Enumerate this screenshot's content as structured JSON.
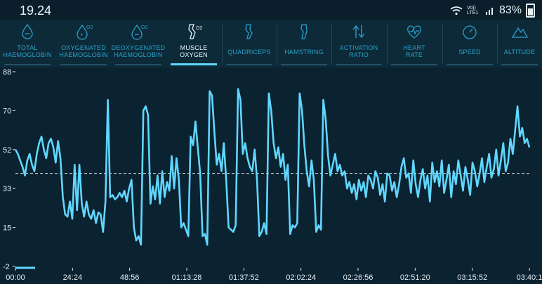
{
  "status_bar": {
    "time": "19.24",
    "network_top": "Vo))",
    "network_bottom": "LTE1",
    "battery_percent": "83%"
  },
  "tabs": [
    {
      "label_line1": "TOTAL",
      "label_line2": "HAEMOGLOBIN",
      "active": false
    },
    {
      "label_line1": "OXYGENATED",
      "label_line2": "HAEMOGLOBIN",
      "active": false
    },
    {
      "label_line1": "DEOXYGENATED",
      "label_line2": "HAEMOGLOBIN",
      "active": false
    },
    {
      "label_line1": "MUSCLE",
      "label_line2": "OXYGEN",
      "active": true
    },
    {
      "label_line1": "QUADRICEPS",
      "label_line2": "",
      "active": false
    },
    {
      "label_line1": "HAMSTRING",
      "label_line2": "",
      "active": false
    },
    {
      "label_line1": "ACTIVATION",
      "label_line2": "RATIO",
      "active": false
    },
    {
      "label_line1": "HEART",
      "label_line2": "RATE",
      "active": false
    },
    {
      "label_line1": "SPEED",
      "label_line2": "",
      "active": false
    },
    {
      "label_line1": "ALTITUDE",
      "label_line2": "",
      "active": false
    }
  ],
  "chart_data": {
    "type": "line",
    "y_ticks": [
      "88",
      "70",
      "52",
      "33",
      "15",
      "-2"
    ],
    "x_ticks": [
      "00:00",
      "24:24",
      "48:56",
      "01:13:28",
      "01:37:52",
      "02:02:24",
      "02:26:56",
      "02:51:20",
      "03:15:52",
      "03:40:1"
    ],
    "ylim": [
      -2,
      88
    ],
    "reference_line": 41,
    "line_color": "#5fd7ff",
    "series": [
      {
        "values": [
          52,
          50,
          47,
          44,
          40,
          47,
          50,
          45,
          42,
          50,
          55,
          58,
          52,
          48,
          55,
          57,
          53,
          46,
          56,
          48,
          30,
          22,
          21,
          28,
          20,
          45,
          24,
          45,
          27,
          21,
          28,
          22,
          20,
          24,
          18,
          23,
          22,
          14,
          28,
          75,
          30,
          31,
          29,
          30,
          32,
          30,
          33,
          28,
          34,
          38,
          16,
          10,
          12,
          8,
          70,
          72,
          68,
          27,
          35,
          29,
          40,
          27,
          42,
          30,
          37,
          33,
          49,
          34,
          48,
          38,
          16,
          18,
          15,
          12,
          58,
          54,
          65,
          53,
          41,
          12,
          13,
          8,
          79,
          77,
          60,
          45,
          50,
          42,
          55,
          38,
          16,
          15,
          14,
          17,
          80,
          75,
          50,
          55,
          48,
          44,
          42,
          52,
          38,
          12,
          14,
          18,
          13,
          78,
          70,
          55,
          48,
          53,
          44,
          50,
          38,
          45,
          13,
          17,
          16,
          18,
          78,
          70,
          54,
          42,
          35,
          47,
          38,
          14,
          17,
          15,
          75,
          66,
          49,
          40,
          45,
          50,
          42,
          45,
          40,
          42,
          34,
          37,
          32,
          36,
          29,
          38,
          33,
          37,
          30,
          40,
          38,
          34,
          42,
          39,
          31,
          36,
          28,
          41,
          40,
          33,
          37,
          30,
          36,
          44,
          48,
          39,
          41,
          32,
          47,
          36,
          30,
          38,
          43,
          34,
          40,
          28,
          46,
          37,
          42,
          35,
          47,
          32,
          38,
          45,
          30,
          42,
          36,
          47,
          40,
          33,
          44,
          38,
          31,
          46,
          42,
          35,
          41,
          48,
          37,
          44,
          50,
          39,
          43,
          52,
          40,
          47,
          55,
          42,
          46,
          57,
          50,
          61,
          72,
          58,
          62,
          55,
          57,
          53
        ]
      }
    ]
  }
}
